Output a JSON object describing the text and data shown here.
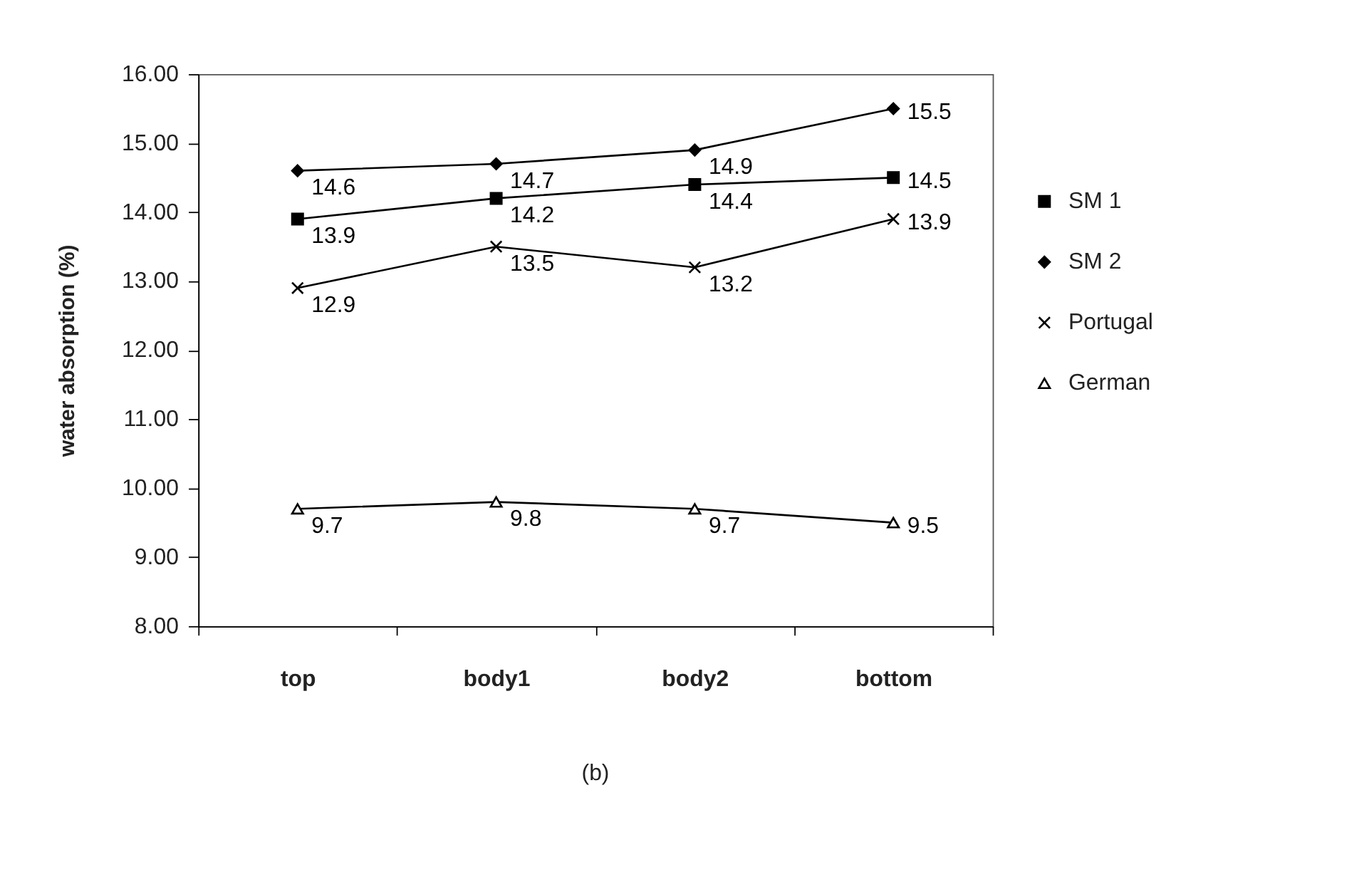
{
  "chart_data": {
    "type": "line",
    "categories": [
      "top",
      "body1",
      "body2",
      "bottom"
    ],
    "series": [
      {
        "name": "SM 1",
        "color": "#000000",
        "marker": "square",
        "values": [
          13.9,
          14.2,
          14.4,
          14.5
        ]
      },
      {
        "name": "SM 2",
        "color": "#000000",
        "marker": "diamond",
        "values": [
          14.6,
          14.7,
          14.9,
          15.5
        ]
      },
      {
        "name": "Portugal",
        "color": "#000000",
        "marker": "cross",
        "values": [
          12.9,
          13.5,
          13.2,
          13.9
        ]
      },
      {
        "name": "German",
        "color": "#000000",
        "marker": "triangle",
        "values": [
          9.7,
          9.8,
          9.7,
          9.5
        ]
      }
    ],
    "ylabel": "water absorption (%)",
    "ylim": [
      8,
      16
    ],
    "yticks": [
      {
        "value": 8,
        "label": "8.00"
      },
      {
        "value": 9,
        "label": "9.00"
      },
      {
        "value": 10,
        "label": "10.00"
      },
      {
        "value": 11,
        "label": "11.00"
      },
      {
        "value": 12,
        "label": "12.00"
      },
      {
        "value": 13,
        "label": "13.00"
      },
      {
        "value": 14,
        "label": "14.00"
      },
      {
        "value": 15,
        "label": "15.00"
      },
      {
        "value": 16,
        "label": "16.00"
      }
    ],
    "data_labels": true,
    "legend": "right",
    "grid": false,
    "line_style": "solid",
    "annotations": [
      "(b)"
    ]
  }
}
